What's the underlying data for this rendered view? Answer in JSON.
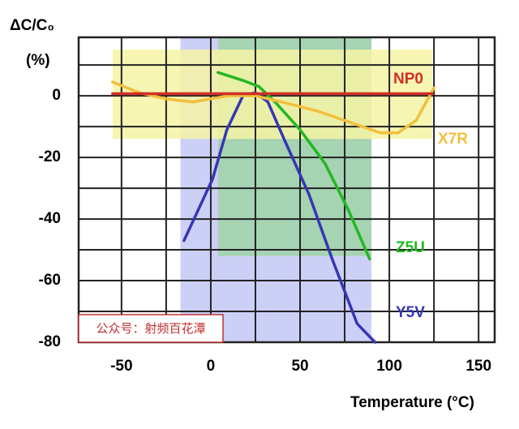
{
  "chart_data": {
    "type": "line",
    "y_label": [
      "ΔC/C₀",
      "(%)"
    ],
    "x_label": "Temperature (°C)",
    "annotation": "公众号：射频百花潭",
    "xlim": [
      -74,
      159
    ],
    "ylim": [
      -80,
      19
    ],
    "xticks": [
      -50,
      0,
      50,
      100,
      150
    ],
    "yticks": [
      -80,
      -60,
      -40,
      -20,
      0
    ],
    "xgrid": [
      -25,
      25,
      75,
      125
    ],
    "ygrid": [
      -70,
      -50,
      -30,
      -10,
      10
    ],
    "grid": true,
    "series": [
      {
        "name": "Y5V",
        "color": "#3636b4",
        "band_color": "#c4c8f4",
        "band_x": [
          -17,
          90
        ],
        "band_y": [
          -80,
          19
        ],
        "x": [
          -15,
          -7,
          1,
          9,
          18,
          25,
          32,
          41,
          55,
          68,
          82,
          92
        ],
        "values": [
          -47,
          -37,
          -27,
          -11,
          0,
          1,
          -2,
          -14,
          -32,
          -53,
          -74,
          -80
        ]
      },
      {
        "name": "Z5U",
        "color": "#22b822",
        "band_color": "#9fd4a6",
        "band_x": [
          4,
          90
        ],
        "band_y": [
          -52,
          19
        ],
        "x": [
          4,
          18,
          27,
          36,
          50,
          64,
          77,
          89
        ],
        "values": [
          7.6,
          5,
          3,
          -2,
          -11,
          -22,
          -37,
          -53
        ]
      },
      {
        "name": "X7R",
        "color": "#f2bf3c",
        "band_color": "#f6f3a4",
        "band_x": [
          -55,
          124
        ],
        "band_y": [
          -14,
          15
        ],
        "x": [
          -55,
          -40,
          -25,
          -10,
          0,
          10,
          25,
          40,
          60,
          80,
          95,
          105,
          115,
          125
        ],
        "values": [
          4.5,
          1,
          -1,
          -2,
          -1,
          0,
          0,
          -2,
          -5,
          -9,
          -12,
          -12,
          -8,
          2.6
        ]
      },
      {
        "name": "NP0",
        "color": "#d03028",
        "x": [
          -55,
          124
        ],
        "values": [
          0.7,
          0.7
        ]
      }
    ]
  }
}
